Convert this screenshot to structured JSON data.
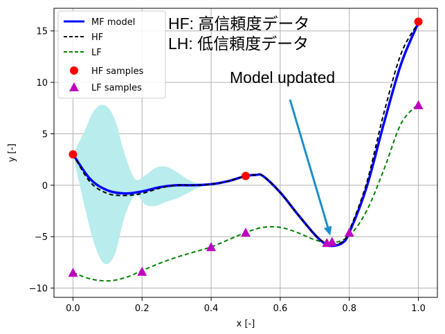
{
  "chart_data": {
    "type": "line",
    "xlabel": "x [-]",
    "ylabel": "y [-]",
    "xlim": [
      -0.055,
      1.055
    ],
    "ylim": [
      -10.9,
      17.2
    ],
    "xticks": [
      0.0,
      0.2,
      0.4,
      0.6,
      0.8,
      1.0
    ],
    "xtick_labels": [
      "0.0",
      "0.2",
      "0.4",
      "0.6",
      "0.8",
      "1.0"
    ],
    "yticks": [
      -10,
      -5,
      0,
      5,
      10,
      15
    ],
    "ytick_labels": [
      "−10",
      "−5",
      "0",
      "5",
      "10",
      "15"
    ],
    "grid": true,
    "legend_position": "top-left",
    "legend": [
      "MF model",
      "HF",
      "LF",
      "HF samples",
      "LF samples"
    ],
    "series": [
      {
        "name": "MF model",
        "style": "solid",
        "color": "#0000ff",
        "x": [
          0.0,
          0.05,
          0.1,
          0.15,
          0.2,
          0.25,
          0.3,
          0.35,
          0.4,
          0.45,
          0.5,
          0.53,
          0.55,
          0.6,
          0.65,
          0.7,
          0.73,
          0.75,
          0.78,
          0.8,
          0.85,
          0.9,
          0.95,
          1.0
        ],
        "y": [
          3.0,
          0.6,
          -0.5,
          -0.8,
          -0.6,
          -0.2,
          0.0,
          0.0,
          0.1,
          0.4,
          0.9,
          1.0,
          0.9,
          -0.7,
          -2.8,
          -4.8,
          -5.7,
          -5.9,
          -5.6,
          -4.6,
          -0.2,
          6.0,
          11.8,
          15.8
        ]
      },
      {
        "name": "HF",
        "style": "dashed",
        "color": "#000000",
        "x": [
          0.0,
          0.05,
          0.1,
          0.15,
          0.2,
          0.25,
          0.3,
          0.35,
          0.4,
          0.45,
          0.5,
          0.53,
          0.55,
          0.6,
          0.65,
          0.7,
          0.73,
          0.75,
          0.78,
          0.8,
          0.85,
          0.9,
          0.95,
          1.0
        ],
        "y": [
          3.0,
          0.3,
          -0.8,
          -1.0,
          -0.8,
          -0.3,
          0.0,
          0.0,
          0.1,
          0.4,
          0.9,
          1.0,
          0.9,
          -0.7,
          -2.8,
          -4.8,
          -5.6,
          -5.8,
          -5.5,
          -4.4,
          0.2,
          7.0,
          12.8,
          15.8
        ]
      },
      {
        "name": "LF",
        "style": "dashed",
        "color": "#008000",
        "x": [
          0.0,
          0.05,
          0.1,
          0.15,
          0.2,
          0.25,
          0.3,
          0.35,
          0.4,
          0.45,
          0.5,
          0.55,
          0.6,
          0.65,
          0.7,
          0.75,
          0.8,
          0.85,
          0.9,
          0.95,
          1.0
        ],
        "y": [
          -8.5,
          -9.1,
          -9.3,
          -9.0,
          -8.3,
          -7.6,
          -7.0,
          -6.5,
          -6.0,
          -5.3,
          -4.6,
          -4.1,
          -4.1,
          -4.6,
          -5.3,
          -5.6,
          -4.9,
          -2.5,
          1.5,
          6.0,
          7.9
        ]
      }
    ],
    "hf_samples": {
      "name": "HF samples",
      "color": "#ff0000",
      "x": [
        0.0,
        0.5,
        1.0
      ],
      "y": [
        3.0,
        0.9,
        15.9
      ]
    },
    "lf_samples": {
      "name": "LF samples",
      "color": "#bf00bf",
      "x": [
        0.0,
        0.2,
        0.4,
        0.5,
        0.735,
        0.75,
        0.8,
        1.0
      ],
      "y": [
        -8.5,
        -8.4,
        -6.0,
        -4.6,
        -5.6,
        -5.5,
        -4.6,
        7.8
      ]
    },
    "confidence_band": {
      "color": "#b8eced",
      "x": [
        0.0,
        0.03,
        0.06,
        0.09,
        0.12,
        0.15,
        0.18,
        0.21,
        0.24,
        0.27,
        0.3,
        0.33,
        0.36,
        0.4,
        0.5,
        0.6,
        0.7,
        0.75,
        0.8,
        0.9,
        1.0
      ],
      "upper": [
        3.0,
        5.0,
        7.2,
        7.8,
        6.5,
        3.0,
        0.6,
        1.0,
        1.7,
        1.8,
        1.3,
        0.6,
        0.2,
        0.1,
        0.9,
        -0.7,
        -4.8,
        -5.9,
        -4.6,
        6.0,
        15.8
      ],
      "lower": [
        3.0,
        -1.5,
        -5.5,
        -7.6,
        -6.8,
        -3.0,
        -1.0,
        -1.9,
        -2.0,
        -1.6,
        -1.3,
        -0.8,
        -0.3,
        0.1,
        0.9,
        -0.7,
        -4.8,
        -5.9,
        -4.6,
        6.0,
        15.8
      ]
    },
    "annotations": {
      "hf_note": "HF: 高信頼度データ",
      "lh_note": "LH: 低信頼度データ",
      "update_note": "Model updated",
      "arrow_target": {
        "x": 0.745,
        "y": -4.9
      }
    }
  }
}
